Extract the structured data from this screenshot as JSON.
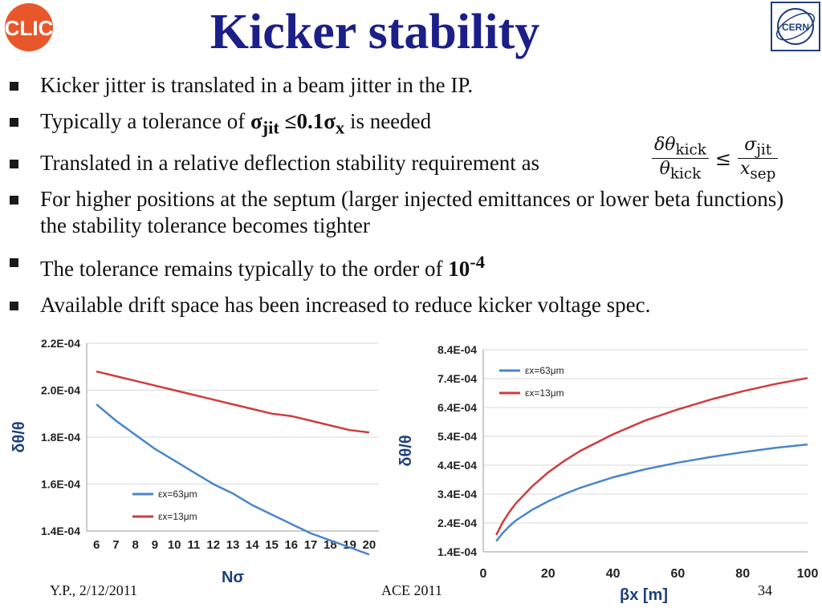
{
  "title": "Kicker stability",
  "logos": {
    "left": "CLIC",
    "right": "CERN"
  },
  "bullets": {
    "b1": "Kicker jitter is translated in a beam jitter in the IP.",
    "b2_pre": "Typically a tolerance of ",
    "b2_math_sigma": "σ",
    "b2_math_jit": "jit",
    "b2_math_le": " ≤0.1σ",
    "b2_math_x": "x",
    "b2_post": " is needed",
    "b3": "Translated in a relative deflection stability requirement as",
    "b4": "For higher positions at the septum (larger injected emittances or lower beta functions) the stability tolerance becomes tighter",
    "b5_pre": "The tolerance remains typically to the order of ",
    "b5_base": "10",
    "b5_exp": "-4",
    "b6": "Available drift space has been increased to reduce kicker voltage spec."
  },
  "formula": {
    "num_left": "δθ",
    "num_left_sub": "kick",
    "den_left": "θ",
    "den_left_sub": "kick",
    "relation": "≤",
    "num_right": "σ",
    "num_right_sub": "jit",
    "den_right": "x",
    "den_right_sub": "sep"
  },
  "footer": {
    "left": "Y.P., 2/12/2011",
    "middle": "ACE 2011",
    "right": "34"
  },
  "colors": {
    "title": "#1b1f87",
    "series_blue": "#4a86c8",
    "series_red": "#d03c3c",
    "grid": "#d9d9d9"
  },
  "chart_data": [
    {
      "type": "line",
      "title": "",
      "xlabel": "Nσ",
      "ylabel": "δθ/θ",
      "categories": [
        "6",
        "7",
        "8",
        "9",
        "10",
        "11",
        "12",
        "13",
        "14",
        "15",
        "16",
        "17",
        "18",
        "19",
        "20"
      ],
      "ylim": [
        0.00014,
        0.00022
      ],
      "yticks": [
        "2.2E-04",
        "2.0E-04",
        "1.8E-04",
        "1.6E-04",
        "1.4E-04"
      ],
      "ytick_values": [
        0.00022,
        0.0002,
        0.00018,
        0.00016,
        0.00014
      ],
      "grid": "horizontal",
      "legend_position": "bottom-left",
      "series": [
        {
          "name": "εx=63μm",
          "color": "#4a86c8",
          "x": [
            6,
            7,
            8,
            9,
            10,
            11,
            12,
            13,
            14,
            15,
            16,
            17,
            18,
            19,
            20
          ],
          "values": [
            0.000194,
            0.000187,
            0.000181,
            0.000175,
            0.00017,
            0.000165,
            0.00016,
            0.000156,
            0.000151,
            0.000147,
            0.000143,
            0.000139,
            0.000136,
            0.000133,
            0.00013
          ]
        },
        {
          "name": "εx=13μm",
          "color": "#d03c3c",
          "x": [
            6,
            7,
            8,
            9,
            10,
            11,
            12,
            13,
            14,
            15,
            16,
            17,
            18,
            19,
            20
          ],
          "values": [
            0.000208,
            0.000206,
            0.000204,
            0.000202,
            0.0002,
            0.000198,
            0.000196,
            0.000194,
            0.000192,
            0.00019,
            0.000189,
            0.000187,
            0.000185,
            0.000183,
            0.000182
          ]
        }
      ]
    },
    {
      "type": "line",
      "title": "",
      "xlabel": "βx [m]",
      "ylabel": "δθ/θ",
      "xlim": [
        0,
        100
      ],
      "xticks": [
        "0",
        "20",
        "40",
        "60",
        "80",
        "100"
      ],
      "xtick_values": [
        0,
        20,
        40,
        60,
        80,
        100
      ],
      "ylim": [
        0.00014,
        0.00084
      ],
      "yticks": [
        "8.4E-04",
        "7.4E-04",
        "6.4E-04",
        "5.4E-04",
        "4.4E-04",
        "3.4E-04",
        "2.4E-04",
        "1.4E-04"
      ],
      "ytick_values": [
        0.00084,
        0.00074,
        0.00064,
        0.00054,
        0.00044,
        0.00034,
        0.00024,
        0.00014
      ],
      "grid": "horizontal",
      "legend_position": "top-left",
      "series": [
        {
          "name": "εx=63μm",
          "color": "#4a86c8",
          "x": [
            4,
            6,
            8,
            10,
            15,
            20,
            25,
            30,
            40,
            50,
            60,
            70,
            80,
            90,
            100
          ],
          "values": [
            0.000177,
            0.000205,
            0.000228,
            0.000248,
            0.000285,
            0.000315,
            0.00034,
            0.000362,
            0.000398,
            0.000426,
            0.000449,
            0.000468,
            0.000485,
            0.0005,
            0.000512
          ]
        },
        {
          "name": "εx=13μm",
          "color": "#d03c3c",
          "x": [
            4,
            6,
            8,
            10,
            15,
            20,
            25,
            30,
            40,
            50,
            60,
            70,
            80,
            90,
            100
          ],
          "values": [
            0.000198,
            0.000242,
            0.000277,
            0.000307,
            0.000366,
            0.000415,
            0.000455,
            0.00049,
            0.000547,
            0.000595,
            0.000633,
            0.000667,
            0.000696,
            0.000721,
            0.000742
          ]
        }
      ]
    }
  ]
}
